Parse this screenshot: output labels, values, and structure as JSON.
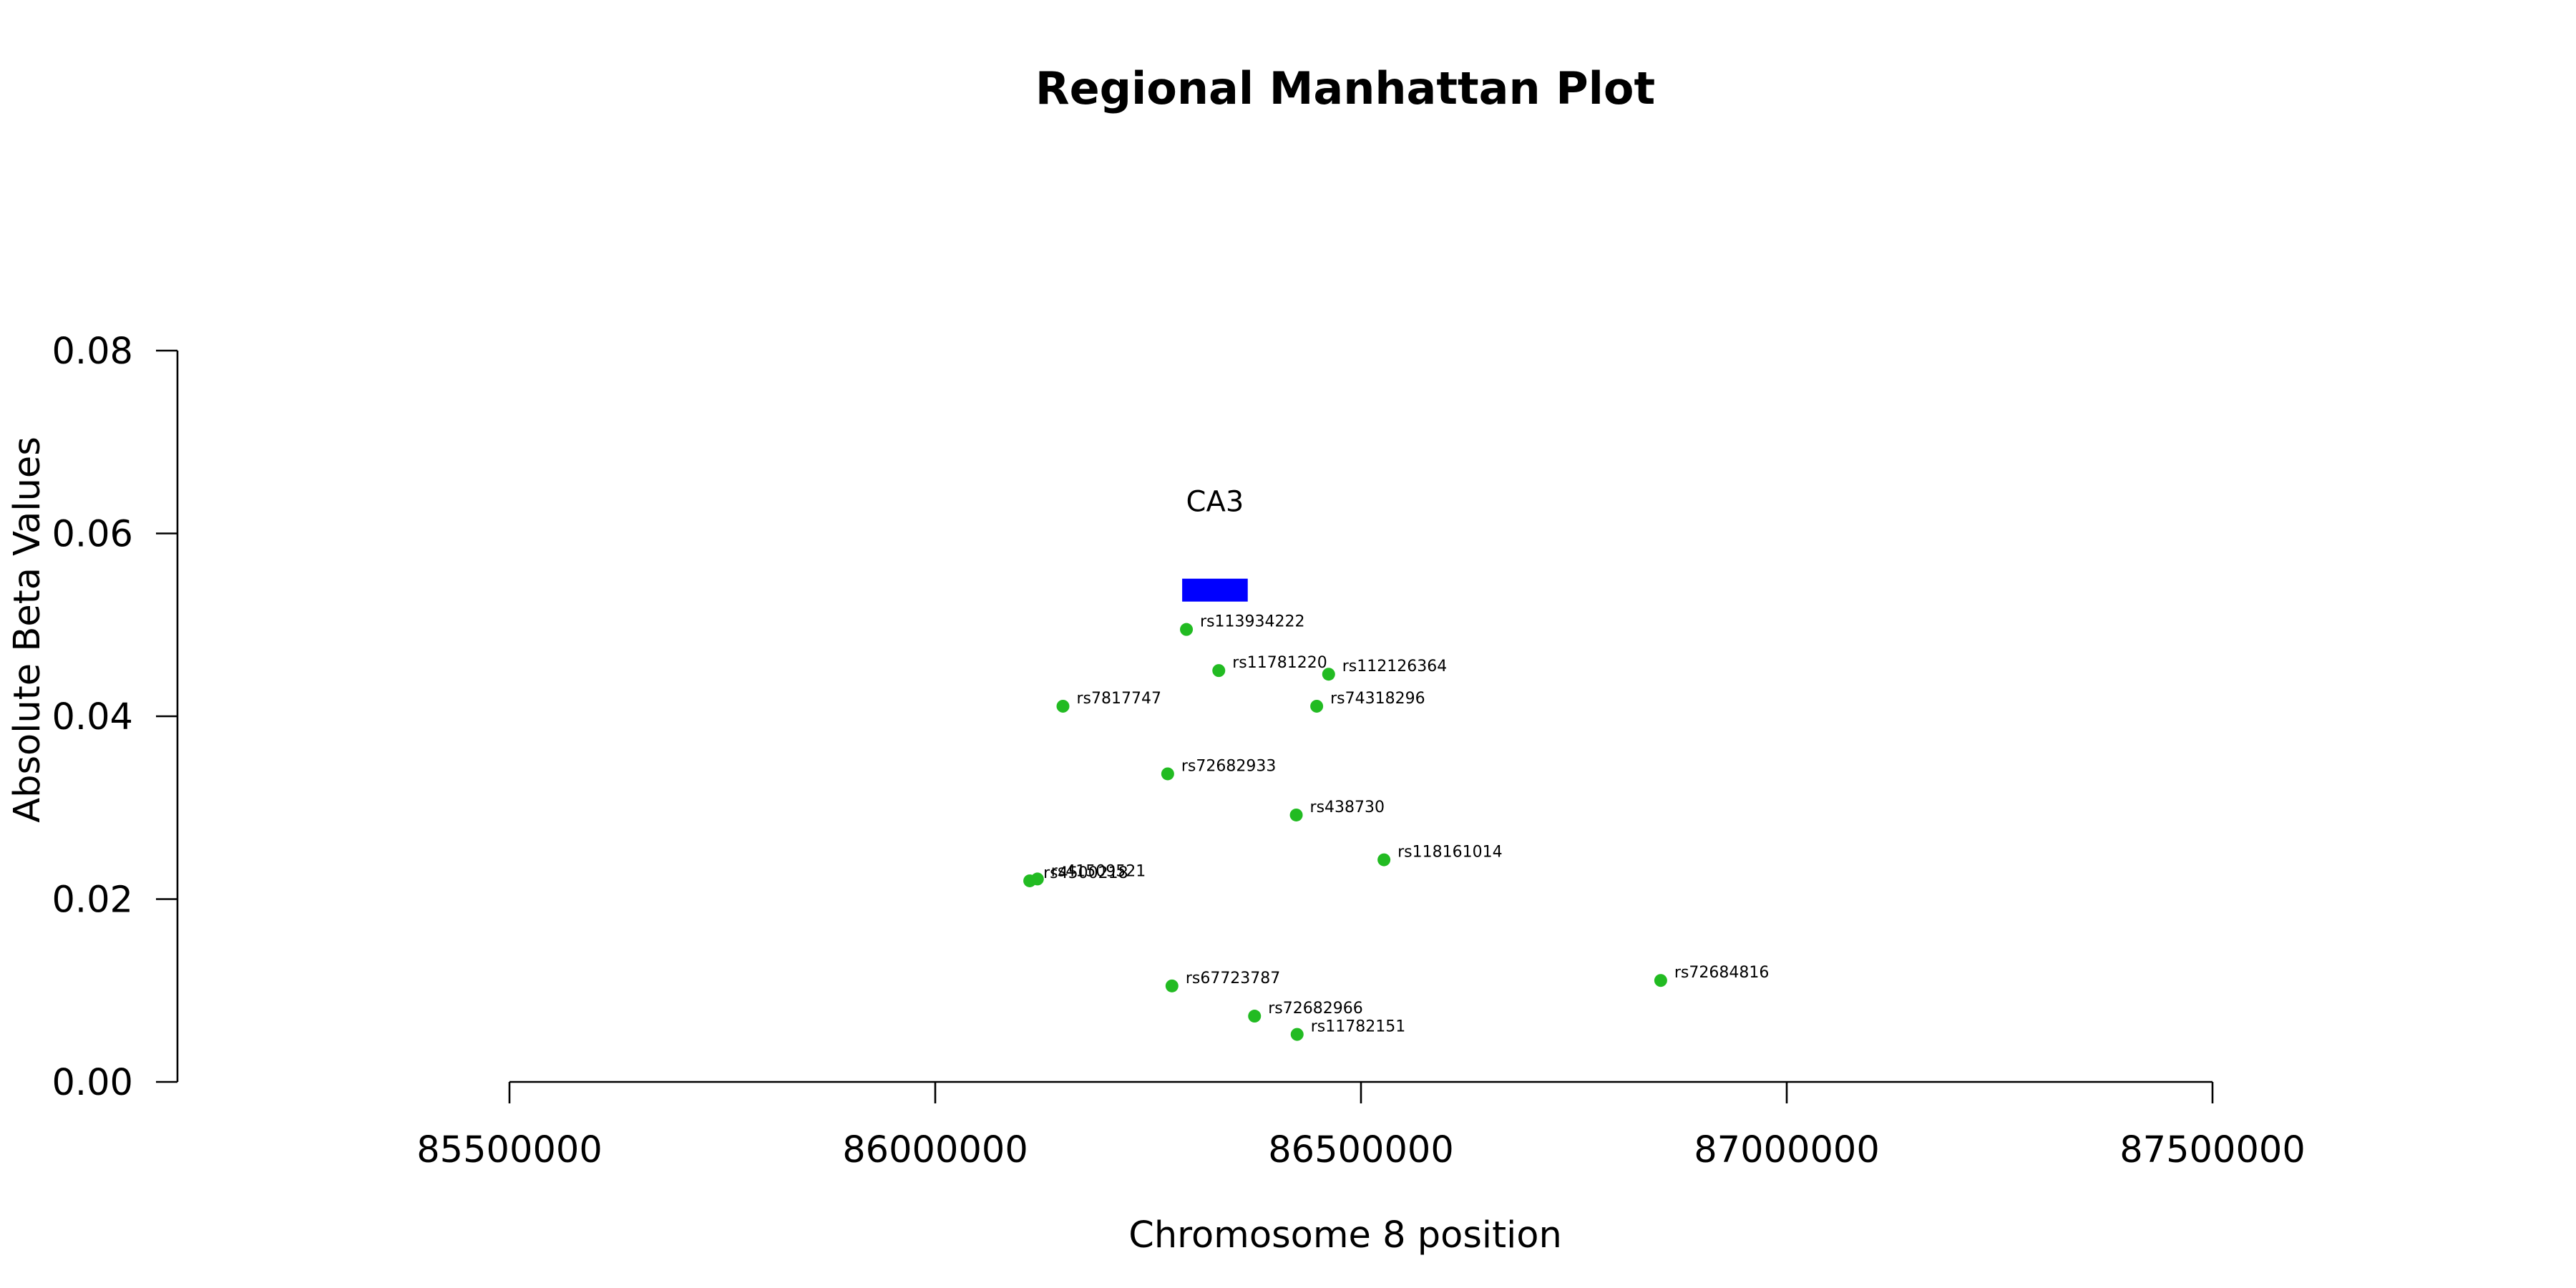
{
  "chart_data": {
    "type": "scatter",
    "title": "Regional Manhattan Plot",
    "xlabel": "Chromosome 8 position",
    "ylabel": "Absolute Beta Values",
    "xlim": [
      85500000,
      87500000
    ],
    "ylim": [
      0,
      0.08
    ],
    "x_ticks": [
      85500000,
      86000000,
      86500000,
      87000000,
      87500000
    ],
    "x_tick_labels": [
      "85500000",
      "86000000",
      "86500000",
      "87000000",
      "87500000"
    ],
    "y_ticks": [
      0,
      0.02,
      0.04,
      0.06,
      0.08
    ],
    "y_tick_labels": [
      "0.00",
      "0.02",
      "0.04",
      "0.06",
      "0.08"
    ],
    "grid": false,
    "point_color": "#22bb22",
    "gene_color": "#0000ff",
    "genes": [
      {
        "name": "CA3",
        "start": 86290000,
        "end": 86367000,
        "y": 0.0538
      }
    ],
    "points": [
      {
        "label": "rs113934222",
        "x": 86295000,
        "y": 0.0495
      },
      {
        "label": "rs11781220",
        "x": 86333000,
        "y": 0.045
      },
      {
        "label": "rs112126364",
        "x": 86462000,
        "y": 0.0446
      },
      {
        "label": "rs7817747",
        "x": 86150000,
        "y": 0.0411
      },
      {
        "label": "rs74318296",
        "x": 86448000,
        "y": 0.0411
      },
      {
        "label": "rs72682933",
        "x": 86273000,
        "y": 0.0337
      },
      {
        "label": "rs438730",
        "x": 86424000,
        "y": 0.0292
      },
      {
        "label": "rs118161014",
        "x": 86527000,
        "y": 0.0243
      },
      {
        "label": "rs4500218",
        "x": 86111000,
        "y": 0.022
      },
      {
        "label": "rs41509521",
        "x": 86120000,
        "y": 0.0222
      },
      {
        "label": "rs67723787",
        "x": 86278000,
        "y": 0.0105
      },
      {
        "label": "rs72684816",
        "x": 86852000,
        "y": 0.0111
      },
      {
        "label": "rs72682966",
        "x": 86375000,
        "y": 0.0072
      },
      {
        "label": "rs11782151",
        "x": 86425000,
        "y": 0.0052
      }
    ]
  }
}
